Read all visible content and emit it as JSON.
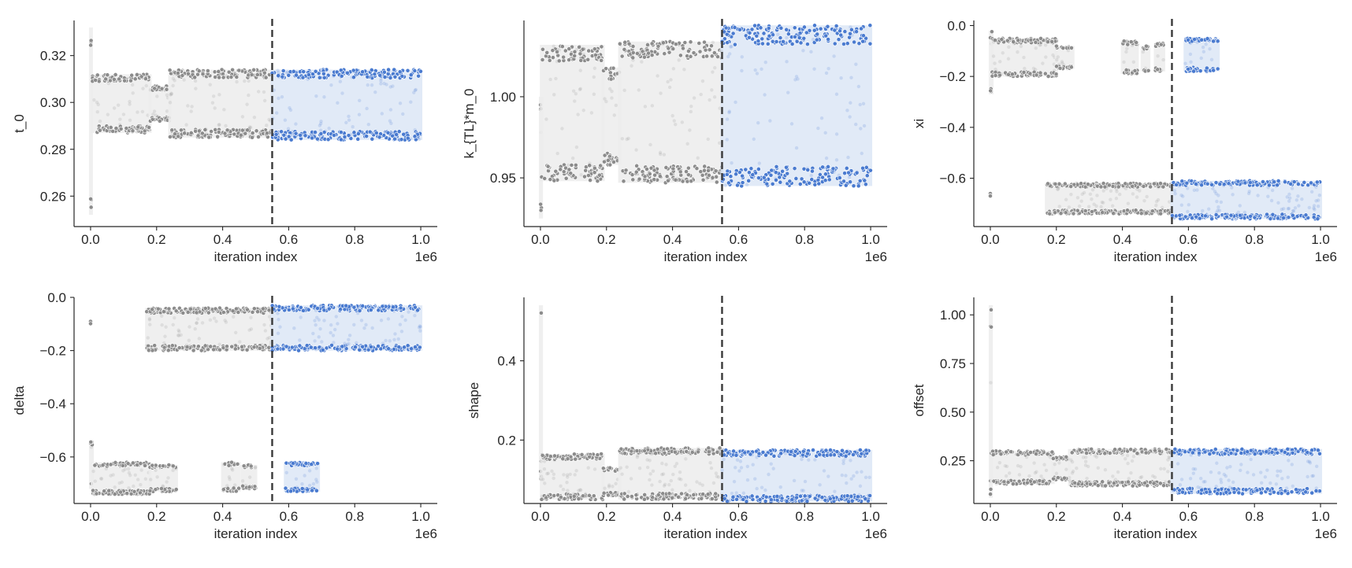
{
  "chart_data": [
    {
      "type": "scatter",
      "xlabel": "iteration index",
      "ylabel": "t_0",
      "x_offset_label": "1e6",
      "xlim": [
        -0.05,
        1.05
      ],
      "ylim": [
        0.247,
        0.335
      ],
      "x_ticks": [
        "0.0",
        "0.2",
        "0.4",
        "0.6",
        "0.8",
        "1.0"
      ],
      "x_tick_values": [
        0.0,
        0.2,
        0.4,
        0.6,
        0.8,
        1.0
      ],
      "y_ticks": [
        "0.26",
        "0.28",
        "0.30",
        "0.32"
      ],
      "y_tick_values": [
        0.26,
        0.28,
        0.3,
        0.32
      ],
      "vline_x": 0.55,
      "series": [
        {
          "color": "#8c8c8c",
          "bands": [
            {
              "x": [
                0.0,
                0.002
              ],
              "lo": 0.252,
              "hi": 0.332
            },
            {
              "x": [
                0.005,
                0.18
              ],
              "lo": 0.287,
              "hi": 0.312
            },
            {
              "x": [
                0.18,
                0.24
              ],
              "lo": 0.292,
              "hi": 0.307
            },
            {
              "x": [
                0.24,
                0.55
              ],
              "lo": 0.285,
              "hi": 0.314
            }
          ]
        },
        {
          "color": "#4a7bd0",
          "bands": [
            {
              "x": [
                0.55,
                1.0
              ],
              "lo": 0.284,
              "hi": 0.314
            }
          ]
        }
      ]
    },
    {
      "type": "scatter",
      "xlabel": "iteration index",
      "ylabel": "k_{TL}*m_0",
      "x_offset_label": "1e6",
      "xlim": [
        -0.05,
        1.05
      ],
      "ylim": [
        0.92,
        1.047
      ],
      "x_ticks": [
        "0.0",
        "0.2",
        "0.4",
        "0.6",
        "0.8",
        "1.0"
      ],
      "x_tick_values": [
        0.0,
        0.2,
        0.4,
        0.6,
        0.8,
        1.0
      ],
      "y_ticks": [
        "0.95",
        "1.00"
      ],
      "y_tick_values": [
        0.95,
        1.0
      ],
      "vline_x": 0.55,
      "series": [
        {
          "color": "#8c8c8c",
          "bands": [
            {
              "x": [
                0.0,
                0.003
              ],
              "lo": 0.925,
              "hi": 1.0
            },
            {
              "x": [
                0.003,
                0.19
              ],
              "lo": 0.948,
              "hi": 1.032
            },
            {
              "x": [
                0.19,
                0.24
              ],
              "lo": 0.958,
              "hi": 1.018
            },
            {
              "x": [
                0.24,
                0.55
              ],
              "lo": 0.947,
              "hi": 1.034
            }
          ]
        },
        {
          "color": "#4a7bd0",
          "bands": [
            {
              "x": [
                0.55,
                1.0
              ],
              "lo": 0.945,
              "hi": 1.044
            }
          ]
        }
      ]
    },
    {
      "type": "scatter",
      "xlabel": "iteration index",
      "ylabel": "xi",
      "x_offset_label": "1e6",
      "xlim": [
        -0.05,
        1.05
      ],
      "ylim": [
        -0.79,
        0.02
      ],
      "x_ticks": [
        "0.0",
        "0.2",
        "0.4",
        "0.6",
        "0.8",
        "1.0"
      ],
      "x_tick_values": [
        0.0,
        0.2,
        0.4,
        0.6,
        0.8,
        1.0
      ],
      "y_ticks": [
        "0.0",
        "−0.2",
        "−0.4",
        "−0.6"
      ],
      "y_tick_values": [
        0.0,
        -0.2,
        -0.4,
        -0.6
      ],
      "vline_x": 0.55,
      "series": [
        {
          "color": "#8c8c8c",
          "bands": [
            {
              "x": [
                0.0,
                0.005
              ],
              "lo": -0.27,
              "hi": -0.02
            },
            {
              "x": [
                0.005,
                0.2
              ],
              "lo": -0.2,
              "hi": -0.05
            },
            {
              "x": [
                0.2,
                0.25
              ],
              "lo": -0.17,
              "hi": -0.08
            },
            {
              "x": [
                0.4,
                0.445
              ],
              "lo": -0.19,
              "hi": -0.06
            },
            {
              "x": [
                0.46,
                0.48
              ],
              "lo": -0.18,
              "hi": -0.08
            },
            {
              "x": [
                0.5,
                0.525
              ],
              "lo": -0.18,
              "hi": -0.07
            },
            {
              "x": [
                0.0,
                0.0
              ],
              "lo": -0.67,
              "hi": -0.66
            },
            {
              "x": [
                0.17,
                0.55
              ],
              "lo": -0.74,
              "hi": -0.62
            }
          ]
        },
        {
          "color": "#4a7bd0",
          "bands": [
            {
              "x": [
                0.59,
                0.69
              ],
              "lo": -0.18,
              "hi": -0.05
            },
            {
              "x": [
                0.55,
                1.0
              ],
              "lo": -0.76,
              "hi": -0.61
            }
          ]
        }
      ]
    },
    {
      "type": "scatter",
      "xlabel": "iteration index",
      "ylabel": "delta",
      "x_offset_label": "1e6",
      "xlim": [
        -0.05,
        1.05
      ],
      "ylim": [
        -0.775,
        0.0
      ],
      "x_ticks": [
        "0.0",
        "0.2",
        "0.4",
        "0.6",
        "0.8",
        "1.0"
      ],
      "x_tick_values": [
        0.0,
        0.2,
        0.4,
        0.6,
        0.8,
        1.0
      ],
      "y_ticks": [
        "0.0",
        "−0.2",
        "−0.4",
        "−0.6"
      ],
      "y_tick_values": [
        0.0,
        -0.2,
        -0.4,
        -0.6
      ],
      "vline_x": 0.55,
      "series": [
        {
          "color": "#8c8c8c",
          "bands": [
            {
              "x": [
                0.0,
                0.0
              ],
              "lo": -0.1,
              "hi": -0.09
            },
            {
              "x": [
                0.17,
                0.55
              ],
              "lo": -0.2,
              "hi": -0.04
            },
            {
              "x": [
                0.0,
                0.005
              ],
              "lo": -0.72,
              "hi": -0.54
            },
            {
              "x": [
                0.005,
                0.18
              ],
              "lo": -0.74,
              "hi": -0.62
            },
            {
              "x": [
                0.18,
                0.26
              ],
              "lo": -0.73,
              "hi": -0.63
            },
            {
              "x": [
                0.4,
                0.45
              ],
              "lo": -0.73,
              "hi": -0.62
            },
            {
              "x": [
                0.46,
                0.5
              ],
              "lo": -0.72,
              "hi": -0.63
            }
          ]
        },
        {
          "color": "#4a7bd0",
          "bands": [
            {
              "x": [
                0.55,
                1.0
              ],
              "lo": -0.2,
              "hi": -0.03
            },
            {
              "x": [
                0.59,
                0.69
              ],
              "lo": -0.73,
              "hi": -0.62
            }
          ]
        }
      ]
    },
    {
      "type": "scatter",
      "xlabel": "iteration index",
      "ylabel": "shape",
      "x_offset_label": "1e6",
      "xlim": [
        -0.05,
        1.05
      ],
      "ylim": [
        0.04,
        0.56
      ],
      "x_ticks": [
        "0.0",
        "0.2",
        "0.4",
        "0.6",
        "0.8",
        "1.0"
      ],
      "x_tick_values": [
        0.0,
        0.2,
        0.4,
        0.6,
        0.8,
        1.0
      ],
      "y_ticks": [
        "0.2",
        "0.4"
      ],
      "y_tick_values": [
        0.2,
        0.4
      ],
      "vline_x": 0.55,
      "series": [
        {
          "color": "#8c8c8c",
          "bands": [
            {
              "x": [
                0.0,
                0.003
              ],
              "lo": 0.1,
              "hi": 0.54
            },
            {
              "x": [
                0.003,
                0.19
              ],
              "lo": 0.05,
              "hi": 0.165
            },
            {
              "x": [
                0.19,
                0.24
              ],
              "lo": 0.06,
              "hi": 0.13
            },
            {
              "x": [
                0.24,
                0.55
              ],
              "lo": 0.05,
              "hi": 0.18
            }
          ]
        },
        {
          "color": "#4a7bd0",
          "bands": [
            {
              "x": [
                0.55,
                1.0
              ],
              "lo": 0.045,
              "hi": 0.175
            }
          ]
        }
      ]
    },
    {
      "type": "scatter",
      "xlabel": "iteration index",
      "ylabel": "offset",
      "x_offset_label": "1e6",
      "xlim": [
        -0.05,
        1.05
      ],
      "ylim": [
        0.03,
        1.09
      ],
      "x_ticks": [
        "0.0",
        "0.2",
        "0.4",
        "0.6",
        "0.8",
        "1.0"
      ],
      "x_tick_values": [
        0.0,
        0.2,
        0.4,
        0.6,
        0.8,
        1.0
      ],
      "y_ticks": [
        "0.25",
        "0.50",
        "0.75",
        "1.00"
      ],
      "y_tick_values": [
        0.25,
        0.5,
        0.75,
        1.0
      ],
      "vline_x": 0.55,
      "series": [
        {
          "color": "#8c8c8c",
          "bands": [
            {
              "x": [
                0.0,
                0.003
              ],
              "lo": 0.06,
              "hi": 1.05
            },
            {
              "x": [
                0.003,
                0.19
              ],
              "lo": 0.13,
              "hi": 0.3
            },
            {
              "x": [
                0.19,
                0.24
              ],
              "lo": 0.15,
              "hi": 0.27
            },
            {
              "x": [
                0.24,
                0.55
              ],
              "lo": 0.12,
              "hi": 0.31
            }
          ]
        },
        {
          "color": "#4a7bd0",
          "bands": [
            {
              "x": [
                0.55,
                1.0
              ],
              "lo": 0.08,
              "hi": 0.31
            }
          ]
        }
      ]
    }
  ]
}
